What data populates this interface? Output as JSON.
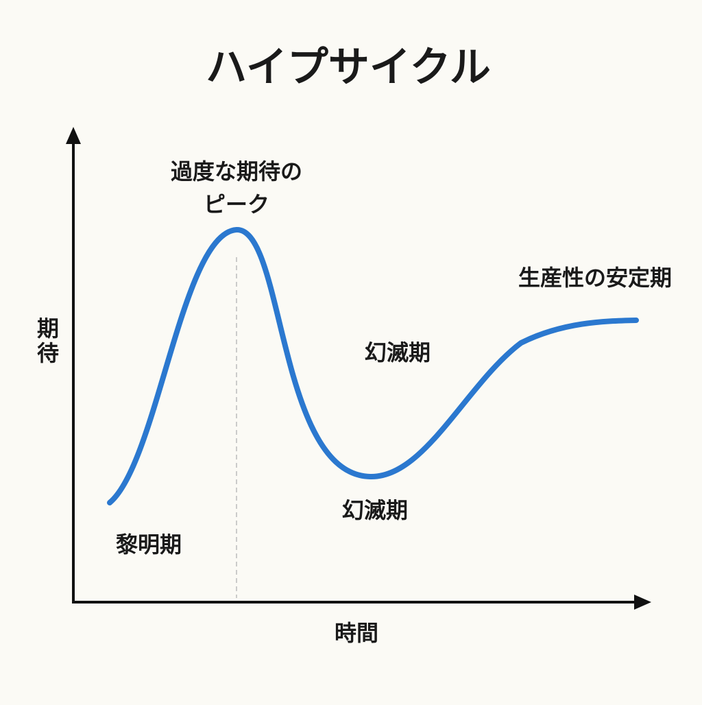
{
  "title": "ハイプサイクル",
  "axes": {
    "y_label": "期待",
    "x_label": "時間"
  },
  "phases": {
    "peak": [
      "過度な期待の",
      "ピーク"
    ],
    "plateau": "生産性の安定期",
    "disillusionment_upper": "幻滅期",
    "disillusionment_lower": "幻滅期",
    "trigger": "黎明期"
  }
}
